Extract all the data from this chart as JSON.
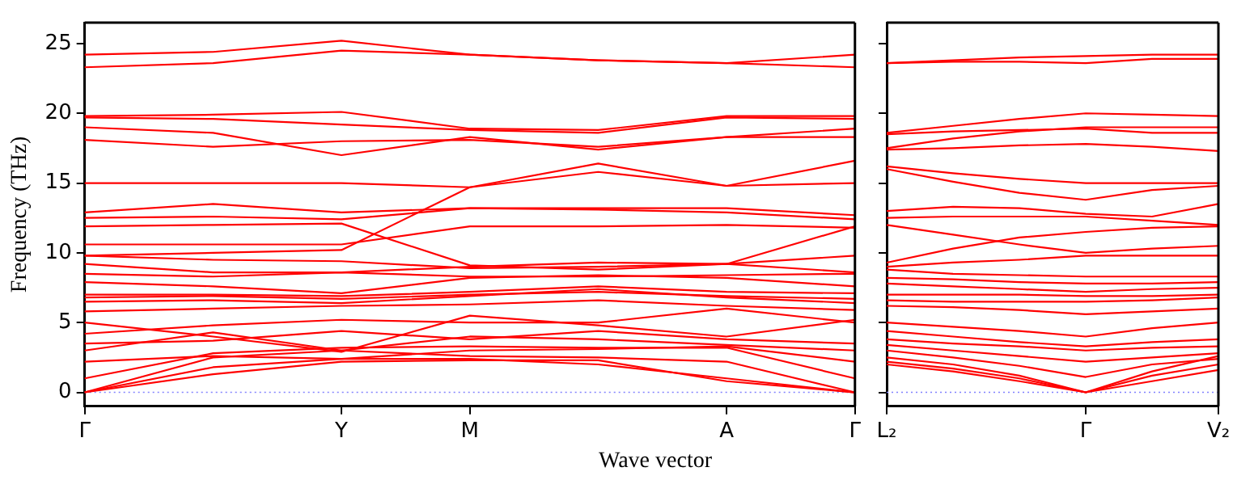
{
  "chart_data": [
    {
      "type": "line",
      "ylabel": "Frequency (THz)",
      "xlabel": "Wave vector",
      "categories": [
        "Γ",
        null,
        "Y",
        "M",
        null,
        "A",
        "Γ"
      ],
      "ylim": [
        -1,
        26.5
      ],
      "yticks": [
        0,
        5,
        10,
        15,
        20,
        25
      ],
      "grid": false,
      "legend": false,
      "marker": "none",
      "line_style": "solid",
      "ref_lines": [
        {
          "axis": "y",
          "value": 0,
          "color": "#8080ff",
          "line_style": "dotted"
        }
      ],
      "series": [
        {
          "color": "#ff0000",
          "values": [
            24.2,
            24.4,
            25.2,
            24.2,
            23.8,
            23.6,
            24.2
          ]
        },
        {
          "color": "#ff0000",
          "values": [
            23.3,
            23.6,
            24.5,
            24.2,
            23.8,
            23.6,
            23.3
          ]
        },
        {
          "color": "#ff0000",
          "values": [
            19.8,
            19.9,
            20.1,
            18.9,
            18.8,
            19.8,
            19.8
          ]
        },
        {
          "color": "#ff0000",
          "values": [
            19.7,
            19.6,
            19.2,
            18.8,
            18.6,
            19.7,
            19.6
          ]
        },
        {
          "color": "#ff0000",
          "values": [
            19.0,
            18.6,
            17.0,
            18.3,
            17.4,
            18.3,
            18.9
          ]
        },
        {
          "color": "#ff0000",
          "values": [
            18.1,
            17.6,
            18.0,
            18.1,
            17.6,
            18.3,
            18.3
          ]
        },
        {
          "color": "#ff0000",
          "values": [
            15.0,
            15.0,
            15.0,
            14.7,
            16.4,
            14.8,
            16.6
          ]
        },
        {
          "color": "#ff0000",
          "values": [
            9.8,
            10.0,
            10.2,
            14.7,
            15.8,
            14.8,
            15.0
          ]
        },
        {
          "color": "#ff0000",
          "values": [
            12.9,
            13.5,
            12.9,
            13.2,
            13.2,
            13.2,
            12.7
          ]
        },
        {
          "color": "#ff0000",
          "values": [
            12.5,
            12.6,
            12.4,
            13.2,
            13.1,
            12.9,
            12.4
          ]
        },
        {
          "color": "#ff0000",
          "values": [
            11.9,
            12.0,
            12.1,
            9.1,
            8.8,
            9.2,
            11.9
          ]
        },
        {
          "color": "#ff0000",
          "values": [
            10.6,
            10.6,
            10.6,
            11.9,
            11.9,
            12.0,
            11.8
          ]
        },
        {
          "color": "#ff0000",
          "values": [
            9.8,
            9.5,
            9.4,
            8.9,
            9.0,
            9.2,
            9.8
          ]
        },
        {
          "color": "#ff0000",
          "values": [
            9.2,
            8.6,
            8.6,
            9.0,
            9.3,
            9.2,
            8.6
          ]
        },
        {
          "color": "#ff0000",
          "values": [
            8.5,
            8.3,
            8.6,
            8.3,
            8.3,
            8.4,
            8.5
          ]
        },
        {
          "color": "#ff0000",
          "values": [
            7.9,
            7.6,
            7.1,
            8.2,
            8.4,
            8.2,
            7.6
          ]
        },
        {
          "color": "#ff0000",
          "values": [
            7.0,
            7.0,
            6.9,
            7.2,
            7.6,
            7.2,
            7.1
          ]
        },
        {
          "color": "#ff0000",
          "values": [
            6.8,
            6.9,
            6.7,
            7.0,
            7.2,
            6.9,
            6.7
          ]
        },
        {
          "color": "#ff0000",
          "values": [
            6.5,
            6.6,
            6.4,
            6.9,
            7.4,
            6.8,
            6.4
          ]
        },
        {
          "color": "#ff0000",
          "values": [
            5.8,
            6.0,
            6.2,
            6.3,
            6.6,
            6.2,
            5.9
          ]
        },
        {
          "color": "#ff0000",
          "values": [
            5.0,
            4.0,
            2.9,
            5.5,
            4.8,
            4.0,
            5.2
          ]
        },
        {
          "color": "#ff0000",
          "values": [
            4.2,
            4.8,
            5.2,
            5.0,
            5.0,
            6.0,
            5.0
          ]
        },
        {
          "color": "#ff0000",
          "values": [
            3.5,
            3.7,
            4.4,
            3.8,
            4.4,
            3.8,
            3.5
          ]
        },
        {
          "color": "#ff0000",
          "values": [
            3.0,
            4.3,
            3.0,
            4.0,
            3.8,
            3.4,
            3.0
          ]
        },
        {
          "color": "#ff0000",
          "values": [
            2.2,
            2.6,
            2.4,
            3.0,
            3.1,
            3.3,
            2.2
          ]
        },
        {
          "color": "#ff0000",
          "values": [
            1.0,
            2.8,
            3.2,
            3.3,
            3.2,
            3.2,
            1.0
          ]
        },
        {
          "color": "#ff0000",
          "values": [
            0,
            2.5,
            3.0,
            2.6,
            2.5,
            2.2,
            0
          ]
        },
        {
          "color": "#ff0000",
          "values": [
            0,
            1.8,
            2.4,
            2.4,
            2.0,
            1.0,
            0
          ]
        },
        {
          "color": "#ff0000",
          "values": [
            0,
            1.3,
            2.2,
            2.3,
            2.3,
            0.8,
            0
          ]
        }
      ]
    },
    {
      "type": "line",
      "tick_labels": "x",
      "categories": [
        "L₂",
        null,
        null,
        "Γ",
        null,
        "V₂"
      ],
      "ylim": [
        -1,
        26.5
      ],
      "yticks": [
        {
          "value": 0,
          "label": null
        },
        {
          "value": 5,
          "label": null
        },
        {
          "value": 10,
          "label": null
        },
        {
          "value": 15,
          "label": null
        },
        {
          "value": 20,
          "label": null
        },
        {
          "value": 25,
          "label": null
        }
      ],
      "grid": false,
      "legend": false,
      "marker": "none",
      "line_style": "solid",
      "ref_lines": [
        {
          "axis": "y",
          "value": 0,
          "color": "#8080ff",
          "line_style": "dotted"
        }
      ],
      "series": [
        {
          "color": "#ff0000",
          "values": [
            23.6,
            23.8,
            24.0,
            24.1,
            24.2,
            24.2
          ]
        },
        {
          "color": "#ff0000",
          "values": [
            23.6,
            23.7,
            23.7,
            23.6,
            23.9,
            23.9
          ]
        },
        {
          "color": "#ff0000",
          "values": [
            18.6,
            19.1,
            19.6,
            20.0,
            19.9,
            19.8
          ]
        },
        {
          "color": "#ff0000",
          "values": [
            17.5,
            18.2,
            18.7,
            19.0,
            19.0,
            19.0
          ]
        },
        {
          "color": "#ff0000",
          "values": [
            18.5,
            18.7,
            18.8,
            18.9,
            18.6,
            18.6
          ]
        },
        {
          "color": "#ff0000",
          "values": [
            17.4,
            17.5,
            17.7,
            17.8,
            17.6,
            17.3
          ]
        },
        {
          "color": "#ff0000",
          "values": [
            16.2,
            15.7,
            15.3,
            15.0,
            15.0,
            15.0
          ]
        },
        {
          "color": "#ff0000",
          "values": [
            16.0,
            15.1,
            14.3,
            13.8,
            14.5,
            14.8
          ]
        },
        {
          "color": "#ff0000",
          "values": [
            13.0,
            13.3,
            13.2,
            12.8,
            12.6,
            13.5
          ]
        },
        {
          "color": "#ff0000",
          "values": [
            12.5,
            12.6,
            12.6,
            12.6,
            12.3,
            12.0
          ]
        },
        {
          "color": "#ff0000",
          "values": [
            12.0,
            11.3,
            10.6,
            10.0,
            10.3,
            10.5
          ]
        },
        {
          "color": "#ff0000",
          "values": [
            9.3,
            10.3,
            11.1,
            11.5,
            11.8,
            11.9
          ]
        },
        {
          "color": "#ff0000",
          "values": [
            9.0,
            9.3,
            9.5,
            9.8,
            9.8,
            9.8
          ]
        },
        {
          "color": "#ff0000",
          "values": [
            8.8,
            8.5,
            8.4,
            8.3,
            8.3,
            8.3
          ]
        },
        {
          "color": "#ff0000",
          "values": [
            8.2,
            8.1,
            7.9,
            7.8,
            7.8,
            7.9
          ]
        },
        {
          "color": "#ff0000",
          "values": [
            7.8,
            7.6,
            7.4,
            7.2,
            7.4,
            7.5
          ]
        },
        {
          "color": "#ff0000",
          "values": [
            7.0,
            7.0,
            7.0,
            6.9,
            6.9,
            7.0
          ]
        },
        {
          "color": "#ff0000",
          "values": [
            6.6,
            6.5,
            6.5,
            6.5,
            6.6,
            6.8
          ]
        },
        {
          "color": "#ff0000",
          "values": [
            6.2,
            6.1,
            5.9,
            5.6,
            5.8,
            6.0
          ]
        },
        {
          "color": "#ff0000",
          "values": [
            5.0,
            4.7,
            4.4,
            4.0,
            4.6,
            5.0
          ]
        },
        {
          "color": "#ff0000",
          "values": [
            4.4,
            4.0,
            3.6,
            3.3,
            3.6,
            3.8
          ]
        },
        {
          "color": "#ff0000",
          "values": [
            3.8,
            3.5,
            3.3,
            3.0,
            3.2,
            3.3
          ]
        },
        {
          "color": "#ff0000",
          "values": [
            3.4,
            3.0,
            2.6,
            2.2,
            2.5,
            2.8
          ]
        },
        {
          "color": "#ff0000",
          "values": [
            3.0,
            2.5,
            1.9,
            1.1,
            2.0,
            2.4
          ]
        },
        {
          "color": "#ff0000",
          "values": [
            2.5,
            2.0,
            1.2,
            0,
            1.5,
            2.6
          ]
        },
        {
          "color": "#ff0000",
          "values": [
            2.2,
            1.7,
            1.0,
            0,
            1.2,
            2.0
          ]
        },
        {
          "color": "#ff0000",
          "values": [
            2.0,
            1.5,
            0.8,
            0,
            0.8,
            1.6
          ]
        }
      ]
    }
  ]
}
